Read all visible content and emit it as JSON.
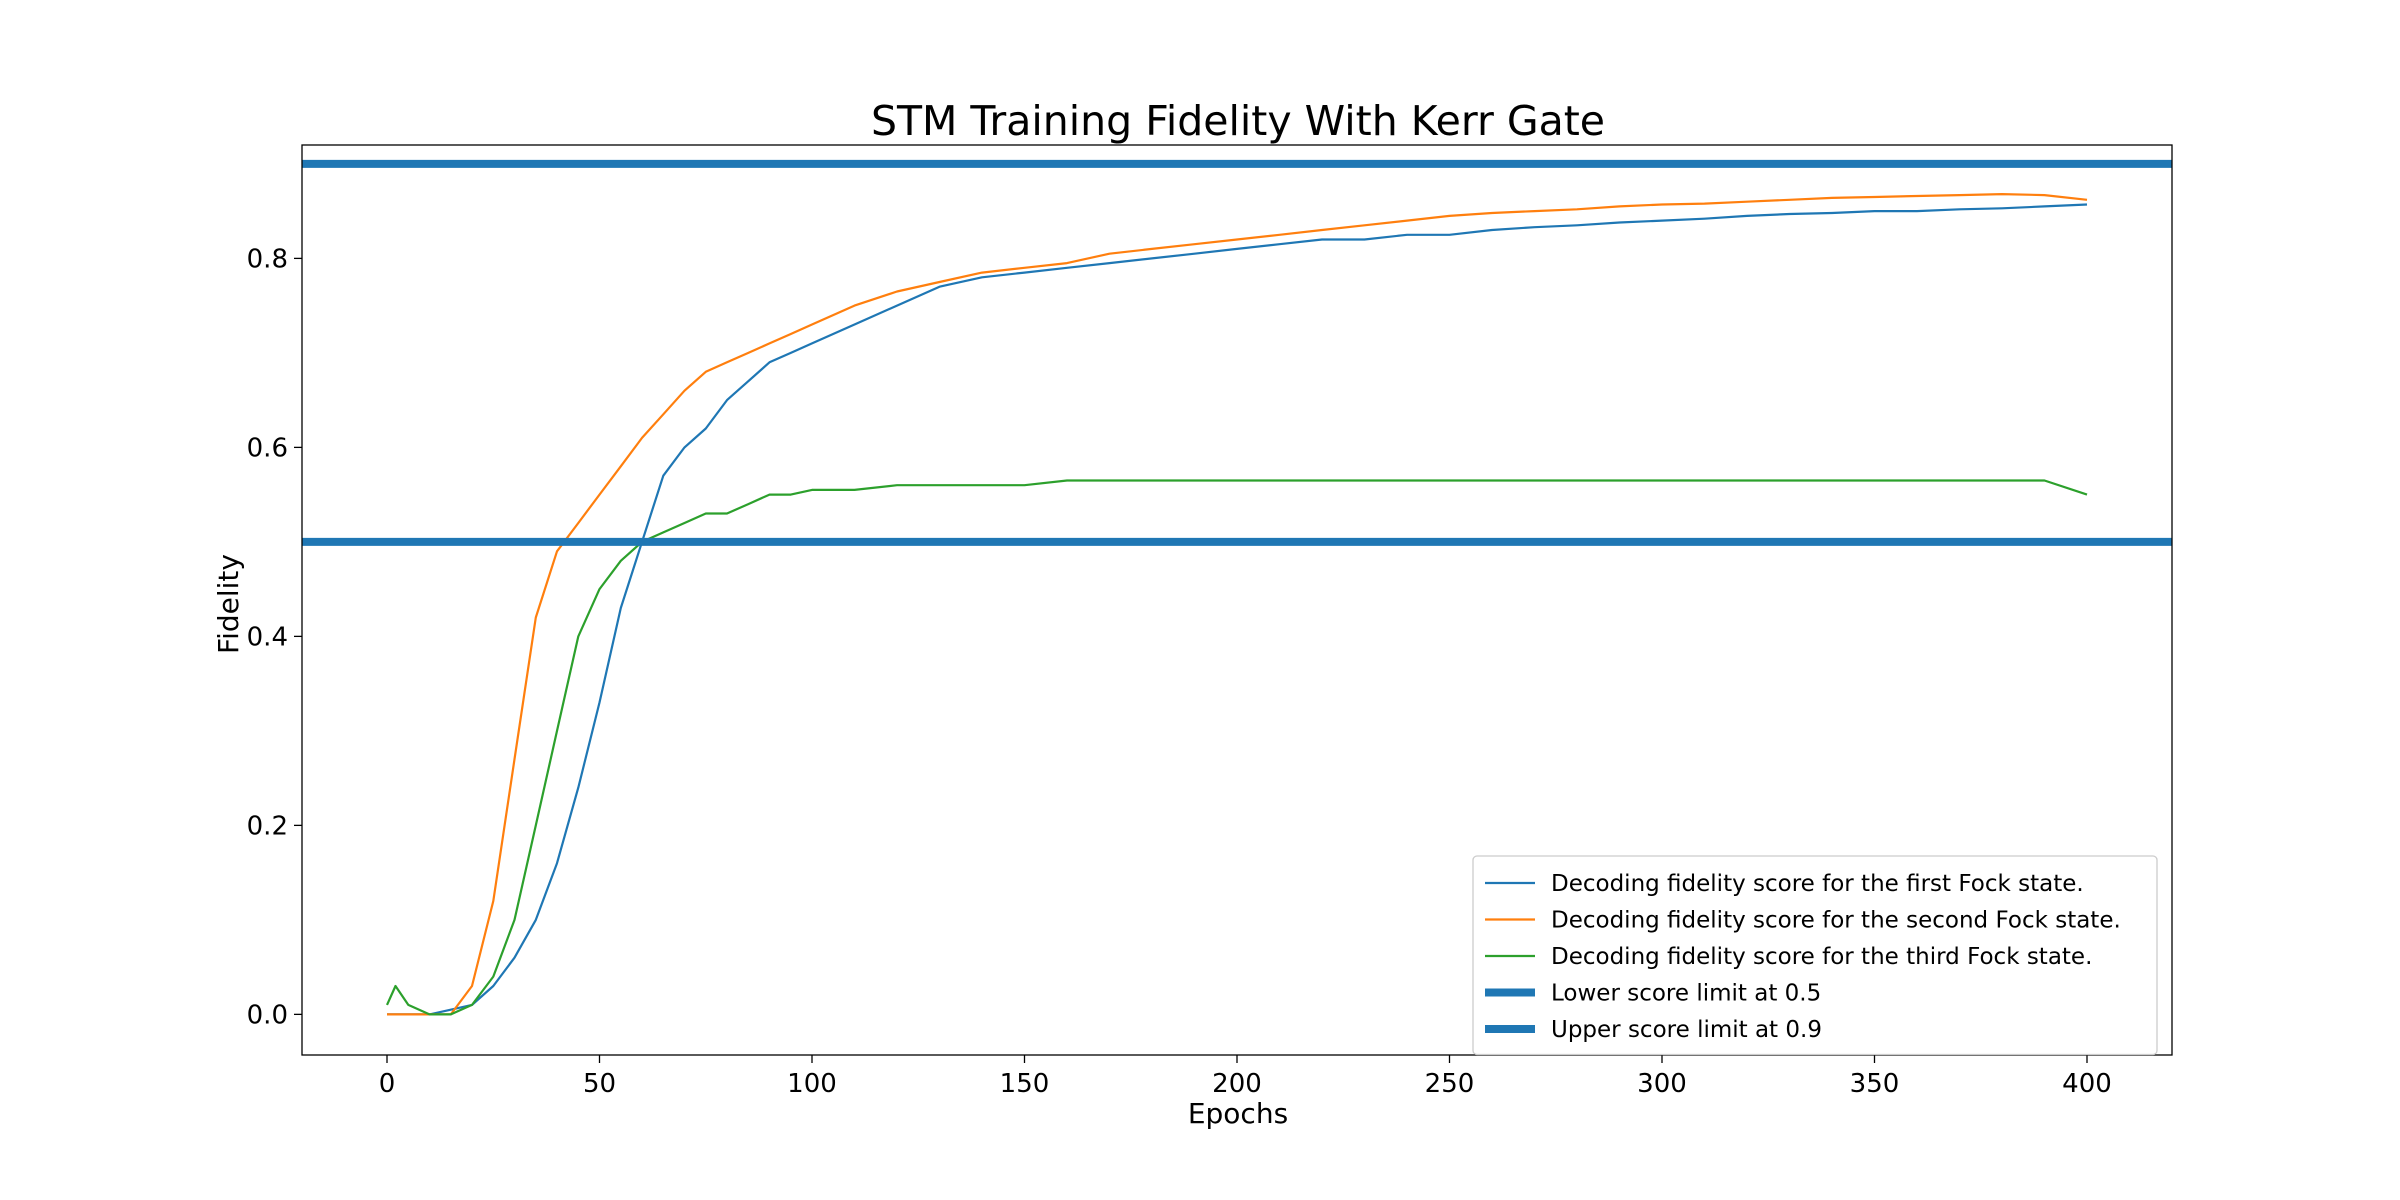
{
  "chart_data": {
    "type": "line",
    "title": "STM Training Fidelity With Kerr Gate",
    "xlabel": "Epochs",
    "ylabel": "Fidelity",
    "xlim": [
      -20,
      420
    ],
    "ylim": [
      -0.043,
      0.92
    ],
    "x_ticks": [
      0,
      50,
      100,
      150,
      200,
      250,
      300,
      350,
      400
    ],
    "y_ticks": [
      0.0,
      0.2,
      0.4,
      0.6,
      0.8
    ],
    "x_tick_labels": [
      "0",
      "50",
      "100",
      "150",
      "200",
      "250",
      "300",
      "350",
      "400"
    ],
    "y_tick_labels": [
      "0.0",
      "0.2",
      "0.4",
      "0.6",
      "0.8"
    ],
    "grid": false,
    "legend_position": "lower-right",
    "series": [
      {
        "name": "Decoding fidelity score for the first Fock state.",
        "color": "#1f77b4",
        "x": [
          0,
          10,
          20,
          25,
          30,
          35,
          40,
          45,
          50,
          55,
          60,
          65,
          70,
          75,
          80,
          85,
          90,
          95,
          100,
          110,
          120,
          130,
          140,
          150,
          160,
          170,
          180,
          190,
          200,
          210,
          220,
          230,
          240,
          250,
          260,
          270,
          280,
          290,
          300,
          310,
          320,
          330,
          340,
          350,
          360,
          370,
          380,
          390,
          400
        ],
        "y": [
          0.0,
          0.0,
          0.01,
          0.03,
          0.06,
          0.1,
          0.16,
          0.24,
          0.33,
          0.43,
          0.5,
          0.57,
          0.6,
          0.62,
          0.65,
          0.67,
          0.69,
          0.7,
          0.71,
          0.73,
          0.75,
          0.77,
          0.78,
          0.785,
          0.79,
          0.795,
          0.8,
          0.805,
          0.81,
          0.815,
          0.82,
          0.82,
          0.825,
          0.825,
          0.83,
          0.833,
          0.835,
          0.838,
          0.84,
          0.842,
          0.845,
          0.847,
          0.848,
          0.85,
          0.85,
          0.852,
          0.853,
          0.855,
          0.857
        ]
      },
      {
        "name": "Decoding fidelity score for the second Fock state.",
        "color": "#ff7f0e",
        "x": [
          0,
          10,
          15,
          20,
          25,
          30,
          35,
          40,
          45,
          50,
          55,
          60,
          65,
          70,
          75,
          80,
          85,
          90,
          95,
          100,
          110,
          120,
          130,
          140,
          150,
          160,
          170,
          180,
          190,
          200,
          210,
          220,
          230,
          240,
          250,
          260,
          270,
          280,
          290,
          300,
          310,
          320,
          330,
          340,
          350,
          360,
          370,
          380,
          390,
          400
        ],
        "y": [
          0.0,
          0.0,
          0.0,
          0.03,
          0.12,
          0.27,
          0.42,
          0.49,
          0.52,
          0.55,
          0.58,
          0.61,
          0.635,
          0.66,
          0.68,
          0.69,
          0.7,
          0.71,
          0.72,
          0.73,
          0.75,
          0.765,
          0.775,
          0.785,
          0.79,
          0.795,
          0.805,
          0.81,
          0.815,
          0.82,
          0.825,
          0.83,
          0.835,
          0.84,
          0.845,
          0.848,
          0.85,
          0.852,
          0.855,
          0.857,
          0.858,
          0.86,
          0.862,
          0.864,
          0.865,
          0.866,
          0.867,
          0.868,
          0.867,
          0.862
        ]
      },
      {
        "name": "Decoding fidelity score for the third Fock state.",
        "color": "#2ca02c",
        "x": [
          0,
          2,
          5,
          10,
          15,
          20,
          25,
          30,
          35,
          40,
          45,
          50,
          55,
          60,
          65,
          70,
          75,
          80,
          85,
          90,
          95,
          100,
          110,
          120,
          130,
          140,
          150,
          160,
          170,
          180,
          190,
          200,
          210,
          220,
          230,
          240,
          250,
          260,
          270,
          280,
          290,
          300,
          310,
          320,
          330,
          340,
          350,
          360,
          370,
          380,
          390,
          400
        ],
        "y": [
          0.01,
          0.03,
          0.01,
          0.0,
          0.0,
          0.01,
          0.04,
          0.1,
          0.2,
          0.3,
          0.4,
          0.45,
          0.48,
          0.5,
          0.51,
          0.52,
          0.53,
          0.53,
          0.54,
          0.55,
          0.55,
          0.555,
          0.555,
          0.56,
          0.56,
          0.56,
          0.56,
          0.565,
          0.565,
          0.565,
          0.565,
          0.565,
          0.565,
          0.565,
          0.565,
          0.565,
          0.565,
          0.565,
          0.565,
          0.565,
          0.565,
          0.565,
          0.565,
          0.565,
          0.565,
          0.565,
          0.565,
          0.565,
          0.565,
          0.565,
          0.565,
          0.55
        ]
      },
      {
        "name": "Lower score limit at 0.5",
        "color": "#1f77b4",
        "hline": 0.5
      },
      {
        "name": "Upper score limit at 0.9",
        "color": "#1f77b4",
        "hline": 0.9
      }
    ]
  }
}
